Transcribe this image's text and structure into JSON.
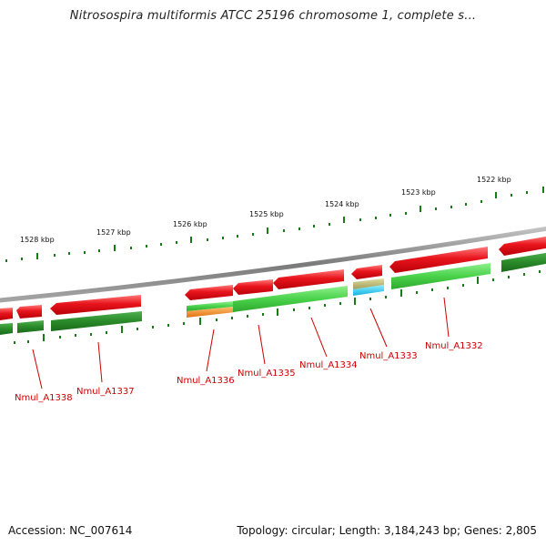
{
  "title": "Nitrosospira multiformis ATCC 25196 chromosome 1, complete s...",
  "footer": {
    "accession": "Accession: NC_007614",
    "topology": "Topology: circular; Length: 3,184,243 bp; Genes: 2,805"
  },
  "ruler": [
    {
      "label": "1528 kbp"
    },
    {
      "label": "1527 kbp"
    },
    {
      "label": "1526 kbp"
    },
    {
      "label": "1525 kbp"
    },
    {
      "label": "1524 kbp"
    },
    {
      "label": "1523 kbp"
    },
    {
      "label": "1522 kbp"
    }
  ],
  "genes": [
    {
      "name": "Nmul_A1338"
    },
    {
      "name": "Nmul_A1337"
    },
    {
      "name": "Nmul_A1336"
    },
    {
      "name": "Nmul_A1335"
    },
    {
      "name": "Nmul_A1334"
    },
    {
      "name": "Nmul_A1333"
    },
    {
      "name": "Nmul_A1332"
    }
  ],
  "colors": {
    "background": "#ffffff",
    "backbone": "#8a8a8a",
    "cds_red": "#e8141c",
    "cds_light_green": "#4ad24a",
    "cds_dark_green": "#2a8a2a",
    "cds_orange": "#f08a18",
    "cds_cyan": "#1ec8f0",
    "cds_khaki": "#b8b46a",
    "tick_green": "#1a7a1a",
    "label_red": "#cc0000"
  }
}
